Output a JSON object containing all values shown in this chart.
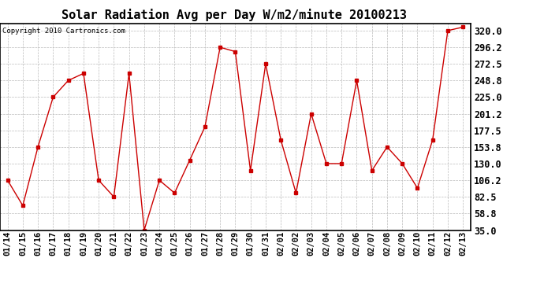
{
  "title": "Solar Radiation Avg per Day W/m2/minute 20100213",
  "copyright": "Copyright 2010 Cartronics.com",
  "x_labels": [
    "01/14",
    "01/15",
    "01/16",
    "01/17",
    "01/18",
    "01/19",
    "01/20",
    "01/21",
    "01/22",
    "01/23",
    "01/24",
    "01/25",
    "01/26",
    "01/27",
    "01/28",
    "01/29",
    "01/30",
    "01/31",
    "02/01",
    "02/02",
    "02/03",
    "02/04",
    "02/05",
    "02/06",
    "02/07",
    "02/08",
    "02/09",
    "02/10",
    "02/11",
    "02/12",
    "02/13"
  ],
  "y_values": [
    106.2,
    70.0,
    153.8,
    225.0,
    248.8,
    258.8,
    106.2,
    82.5,
    258.8,
    35.0,
    106.2,
    88.0,
    135.0,
    182.5,
    296.2,
    290.0,
    120.0,
    272.5,
    163.8,
    88.0,
    201.2,
    130.0,
    130.0,
    248.8,
    120.0,
    153.8,
    130.0,
    95.0,
    163.8,
    320.0,
    325.0
  ],
  "line_color": "#cc0000",
  "marker": "s",
  "marker_size": 3,
  "bg_color": "#ffffff",
  "plot_bg_color": "#ffffff",
  "grid_color": "#bbbbbb",
  "ylim": [
    35.0,
    330.0
  ],
  "yticks": [
    35.0,
    58.8,
    82.5,
    106.2,
    130.0,
    153.8,
    177.5,
    201.2,
    225.0,
    248.8,
    272.5,
    296.2,
    320.0
  ],
  "title_fontsize": 11,
  "copyright_fontsize": 6.5,
  "tick_fontsize": 7.5,
  "ytick_fontsize": 8.5
}
